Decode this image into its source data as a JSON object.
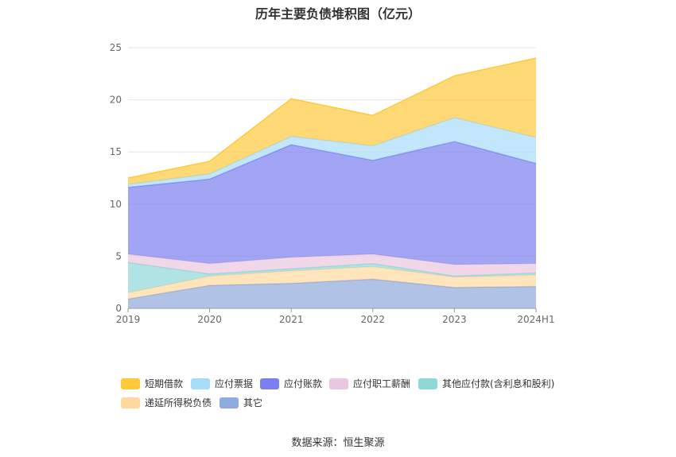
{
  "chart_data": {
    "type": "area",
    "stacked": true,
    "title": "历年主要负债堆积图（亿元）",
    "categories": [
      "2019",
      "2020",
      "2021",
      "2022",
      "2023",
      "2024H1"
    ],
    "ylim": [
      0,
      25
    ],
    "yticks": [
      "0",
      "5",
      "10",
      "15",
      "20",
      "25"
    ],
    "grid": true,
    "legend_position": "bottom",
    "series": [
      {
        "name": "其它",
        "color": "#8faadc",
        "values": [
          0.9,
          2.2,
          2.4,
          2.8,
          2.0,
          2.1
        ]
      },
      {
        "name": "递延所得税负债",
        "color": "#ffd8a0",
        "values": [
          0.6,
          0.9,
          1.2,
          1.2,
          1.0,
          1.1
        ]
      },
      {
        "name": "其他应付款(含利息和股利)",
        "color": "#8ed8d8",
        "values": [
          2.9,
          0.2,
          0.2,
          0.3,
          0.1,
          0.2
        ]
      },
      {
        "name": "应付职工薪酬",
        "color": "#eac7e0",
        "values": [
          0.8,
          1.0,
          1.1,
          0.9,
          1.1,
          0.9
        ]
      },
      {
        "name": "应付账款",
        "color": "#7b7ff0",
        "values": [
          6.4,
          8.1,
          10.8,
          9.0,
          11.8,
          9.6
        ]
      },
      {
        "name": "应付票据",
        "color": "#a8dcf8",
        "values": [
          0.3,
          0.5,
          0.8,
          1.4,
          2.3,
          2.5
        ]
      },
      {
        "name": "短期借款",
        "color": "#ffc93c",
        "values": [
          0.6,
          1.2,
          3.6,
          2.9,
          4.0,
          7.6
        ]
      }
    ]
  },
  "legend": [
    {
      "label": "短期借款",
      "color": "#ffc93c"
    },
    {
      "label": "应付票据",
      "color": "#a8dcf8"
    },
    {
      "label": "应付账款",
      "color": "#7b7ff0"
    },
    {
      "label": "应付职工薪酬",
      "color": "#eac7e0"
    },
    {
      "label": "其他应付款(含利息和股利)",
      "color": "#8ed8d8"
    },
    {
      "label": "递延所得税负债",
      "color": "#ffd8a0"
    },
    {
      "label": "其它",
      "color": "#8faadc"
    }
  ],
  "source": "数据来源：恒生聚源"
}
